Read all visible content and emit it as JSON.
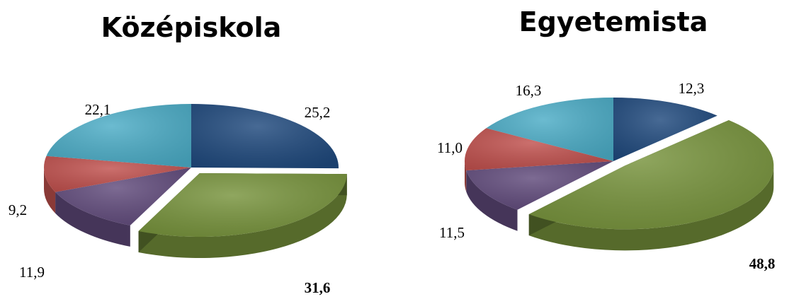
{
  "chart_data": [
    {
      "type": "pie",
      "title": "Középiskola",
      "slices": [
        {
          "label": "25,2",
          "value": 25.2,
          "color": "#1F497D",
          "bold": false,
          "exploded": false
        },
        {
          "label": "31,6",
          "value": 31.6,
          "color": "#77933C",
          "bold": true,
          "exploded": true
        },
        {
          "label": "11,9",
          "value": 11.9,
          "color": "#604A7B",
          "bold": false,
          "exploded": false
        },
        {
          "label": "9,2",
          "value": 9.2,
          "color": "#C0504D",
          "bold": false,
          "exploded": false
        },
        {
          "label": "22,1",
          "value": 22.1,
          "color": "#4BACC6",
          "bold": false,
          "exploded": false
        }
      ]
    },
    {
      "type": "pie",
      "title": "Egyetemista",
      "slices": [
        {
          "label": "12,3",
          "value": 12.3,
          "color": "#1F497D",
          "bold": false,
          "exploded": false
        },
        {
          "label": "48,8",
          "value": 48.8,
          "color": "#77933C",
          "bold": true,
          "exploded": true
        },
        {
          "label": "11,5",
          "value": 11.5,
          "color": "#604A7B",
          "bold": false,
          "exploded": false
        },
        {
          "label": "11,0",
          "value": 11.0,
          "color": "#C0504D",
          "bold": false,
          "exploded": false
        },
        {
          "label": "16,3",
          "value": 16.3,
          "color": "#4BACC6",
          "bold": false,
          "exploded": false
        }
      ]
    }
  ]
}
